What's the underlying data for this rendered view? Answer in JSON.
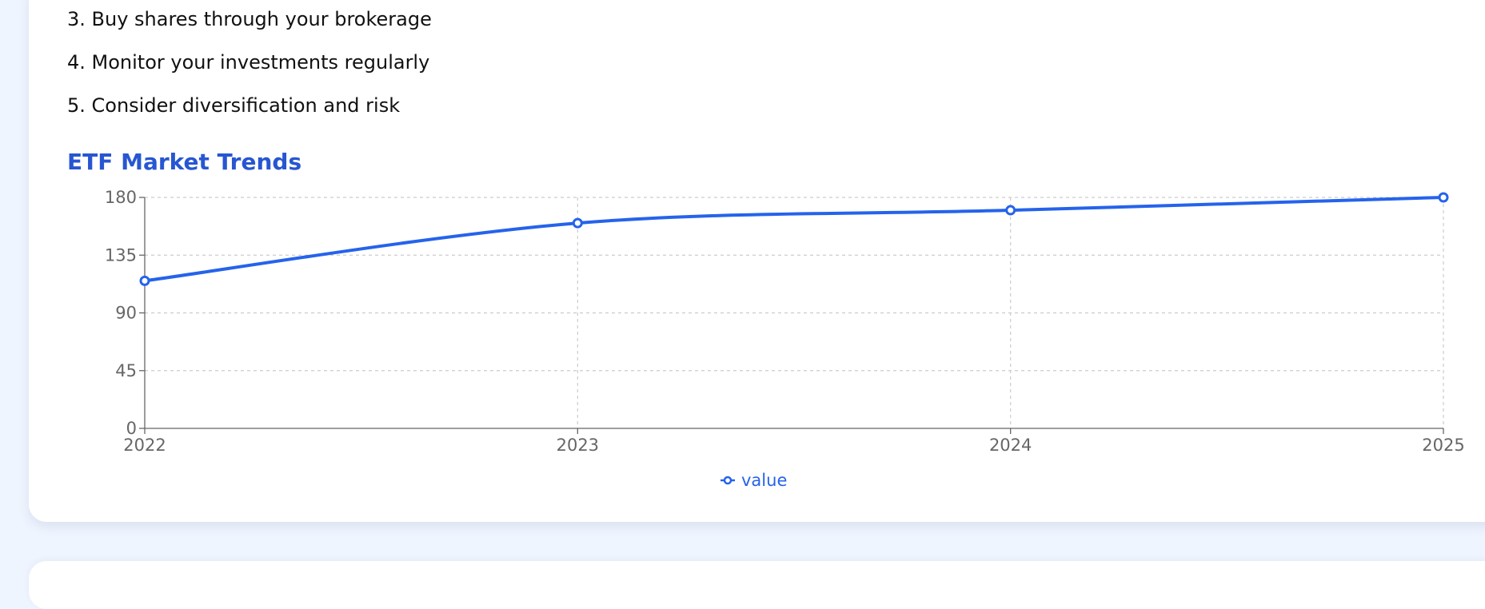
{
  "steps": [
    "3. Buy shares through your brokerage",
    "4. Monitor your investments regularly",
    "5. Consider diversification and risk"
  ],
  "chart_title": "ETF Market Trends",
  "chart_data": {
    "type": "line",
    "title": "ETF Market Trends",
    "x": [
      "2022",
      "2023",
      "2024",
      "2025"
    ],
    "series": [
      {
        "name": "value",
        "values": [
          115,
          160,
          170,
          180
        ],
        "color": "#2563eb"
      }
    ],
    "ylim": [
      0,
      180
    ],
    "yticks": [
      0,
      45,
      90,
      135,
      180
    ],
    "grid": true,
    "legend": "bottom",
    "curve": "smooth"
  }
}
